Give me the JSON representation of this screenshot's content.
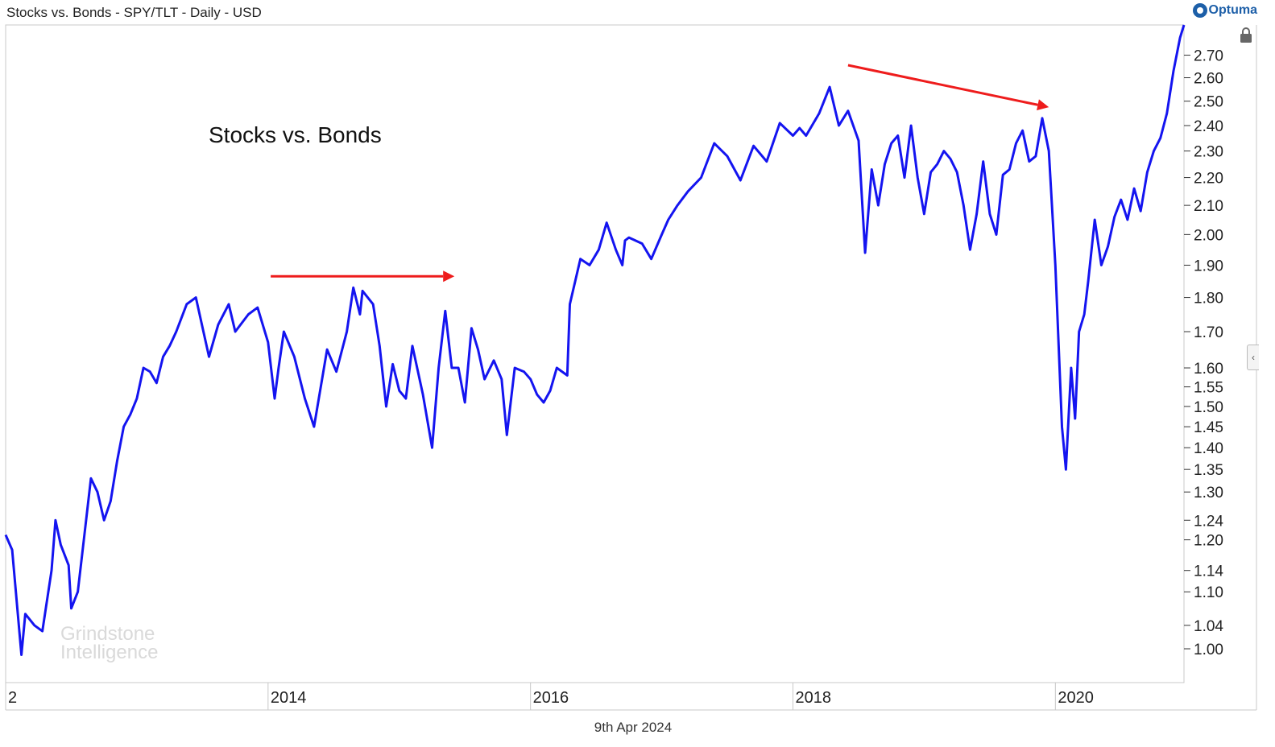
{
  "header": {
    "title": "Stocks vs. Bonds - SPY/TLT - Daily - USD",
    "brand": "Optuma"
  },
  "footer": {
    "date": "9th Apr 2024"
  },
  "watermark": {
    "line1": "Grindstone",
    "line2": "Intelligence"
  },
  "colors": {
    "series": "#1414f0",
    "arrow": "#ee1c1c",
    "grid": "#c8c8c8"
  },
  "icons": {
    "lock": "lock-icon",
    "collapse": "chevron-left-icon"
  },
  "chart_data": {
    "type": "line",
    "title": "Stocks vs. Bonds",
    "xlabel": "",
    "ylabel": "",
    "y_scale": "log",
    "ylim": [
      0.945,
      2.84
    ],
    "xlim": [
      2012.0,
      2020.98
    ],
    "x_tick_labels": [
      "2",
      "2014",
      "2016",
      "2018",
      "2020"
    ],
    "y_tick_labels": [
      "2.70",
      "2.60",
      "2.50",
      "2.40",
      "2.30",
      "2.20",
      "2.10",
      "2.00",
      "1.90",
      "1.80",
      "1.70",
      "1.60",
      "1.55",
      "1.50",
      "1.45",
      "1.40",
      "1.35",
      "1.30",
      "1.24",
      "1.20",
      "1.14",
      "1.10",
      "1.04",
      "1.00"
    ],
    "series": [
      {
        "x": [
          2012.0,
          2012.05,
          2012.12,
          2012.15,
          2012.22,
          2012.28,
          2012.35,
          2012.38,
          2012.42,
          2012.48,
          2012.5,
          2012.55,
          2012.6,
          2012.65,
          2012.7,
          2012.75,
          2012.8,
          2012.85,
          2012.9,
          2012.95,
          2013.0,
          2013.05,
          2013.1,
          2013.15,
          2013.2,
          2013.25,
          2013.3,
          2013.38,
          2013.45,
          2013.55,
          2013.62,
          2013.7,
          2013.75,
          2013.85,
          2013.92,
          2014.0,
          2014.05,
          2014.08,
          2014.12,
          2014.2,
          2014.28,
          2014.35,
          2014.45,
          2014.52,
          2014.6,
          2014.65,
          2014.7,
          2014.72,
          2014.8,
          2014.85,
          2014.9,
          2014.95,
          2015.0,
          2015.05,
          2015.1,
          2015.18,
          2015.25,
          2015.3,
          2015.35,
          2015.4,
          2015.45,
          2015.5,
          2015.55,
          2015.6,
          2015.65,
          2015.72,
          2015.78,
          2015.82,
          2015.88,
          2015.95,
          2016.0,
          2016.05,
          2016.1,
          2016.15,
          2016.2,
          2016.28,
          2016.3,
          2016.38,
          2016.45,
          2016.52,
          2016.58,
          2016.65,
          2016.7,
          2016.72,
          2016.75,
          2016.85,
          2016.92,
          2017.0,
          2017.05,
          2017.12,
          2017.2,
          2017.3,
          2017.4,
          2017.5,
          2017.6,
          2017.7,
          2017.8,
          2017.9,
          2018.0,
          2018.05,
          2018.1,
          2018.2,
          2018.28,
          2018.35,
          2018.42,
          2018.5,
          2018.55,
          2018.6,
          2018.65,
          2018.7,
          2018.75,
          2018.8,
          2018.85,
          2018.9,
          2018.95,
          2019.0,
          2019.05,
          2019.1,
          2019.15,
          2019.2,
          2019.25,
          2019.3,
          2019.35,
          2019.4,
          2019.45,
          2019.5,
          2019.55,
          2019.6,
          2019.65,
          2019.7,
          2019.75,
          2019.8,
          2019.85,
          2019.9,
          2019.95,
          2020.0,
          2020.05,
          2020.08,
          2020.12,
          2020.15,
          2020.18,
          2020.22,
          2020.25,
          2020.3,
          2020.35,
          2020.4,
          2020.45,
          2020.5,
          2020.55,
          2020.6,
          2020.65,
          2020.7,
          2020.75,
          2020.8,
          2020.85,
          2020.9,
          2020.95,
          2020.98
        ],
        "values": [
          1.21,
          1.18,
          0.99,
          1.06,
          1.04,
          1.03,
          1.14,
          1.24,
          1.19,
          1.15,
          1.07,
          1.1,
          1.21,
          1.33,
          1.3,
          1.24,
          1.28,
          1.37,
          1.45,
          1.48,
          1.52,
          1.6,
          1.59,
          1.56,
          1.63,
          1.66,
          1.7,
          1.78,
          1.8,
          1.63,
          1.72,
          1.78,
          1.7,
          1.75,
          1.77,
          1.67,
          1.52,
          1.6,
          1.7,
          1.63,
          1.52,
          1.45,
          1.65,
          1.59,
          1.7,
          1.83,
          1.75,
          1.82,
          1.78,
          1.66,
          1.5,
          1.61,
          1.54,
          1.52,
          1.66,
          1.53,
          1.4,
          1.6,
          1.76,
          1.6,
          1.6,
          1.51,
          1.71,
          1.65,
          1.57,
          1.62,
          1.57,
          1.43,
          1.6,
          1.59,
          1.57,
          1.53,
          1.51,
          1.54,
          1.6,
          1.58,
          1.78,
          1.92,
          1.9,
          1.95,
          2.04,
          1.95,
          1.9,
          1.98,
          1.99,
          1.97,
          1.92,
          2.0,
          2.05,
          2.1,
          2.15,
          2.2,
          2.33,
          2.28,
          2.19,
          2.32,
          2.26,
          2.41,
          2.36,
          2.39,
          2.36,
          2.45,
          2.56,
          2.4,
          2.46,
          2.34,
          1.94,
          2.23,
          2.1,
          2.25,
          2.33,
          2.36,
          2.2,
          2.4,
          2.2,
          2.07,
          2.22,
          2.25,
          2.3,
          2.27,
          2.22,
          2.1,
          1.95,
          2.07,
          2.26,
          2.07,
          2.0,
          2.21,
          2.23,
          2.33,
          2.38,
          2.26,
          2.28,
          2.43,
          2.3,
          1.9,
          1.45,
          1.35,
          1.6,
          1.47,
          1.7,
          1.75,
          1.85,
          2.05,
          1.9,
          1.96,
          2.06,
          2.12,
          2.05,
          2.16,
          2.08,
          2.22,
          2.3,
          2.35,
          2.45,
          2.63,
          2.78,
          2.84
        ]
      }
    ],
    "annotations": [
      {
        "type": "arrow",
        "from": [
          2014.02,
          1.865
        ],
        "to": [
          2015.42,
          1.865
        ]
      },
      {
        "type": "arrow",
        "from": [
          2018.42,
          2.655
        ],
        "to": [
          2019.95,
          2.475
        ]
      }
    ]
  }
}
